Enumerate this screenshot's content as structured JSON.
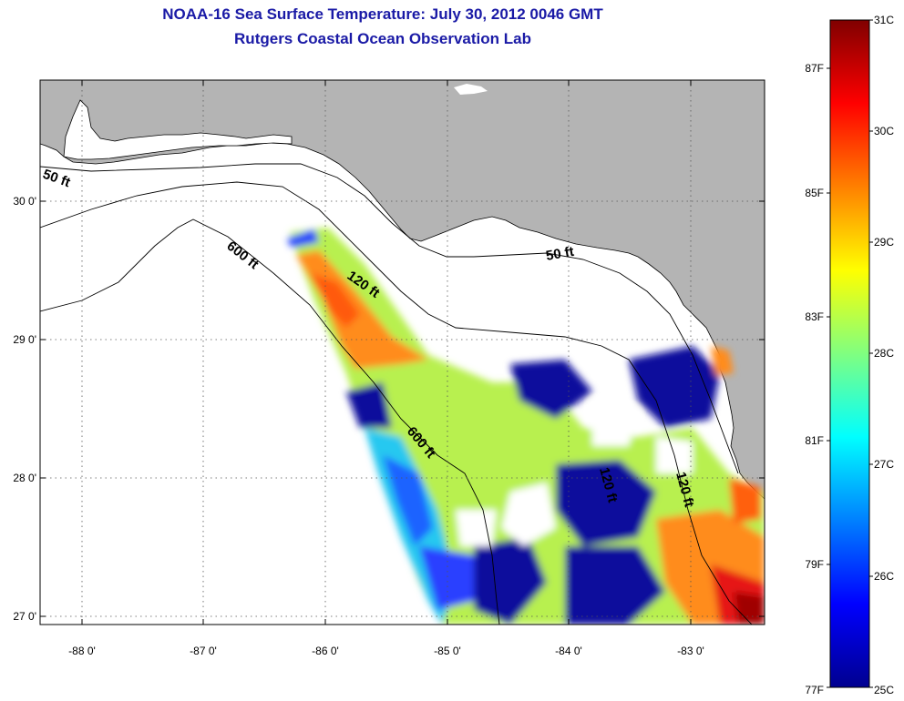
{
  "title": {
    "line1": "NOAA-16 Sea Surface Temperature:  July 30, 2012 0046 GMT",
    "line2": "Rutgers Coastal Ocean Observation Lab"
  },
  "map": {
    "lon_ticks": [
      "-88 0'",
      "-87 0'",
      "-86 0'",
      "-85 0'",
      "-84 0'",
      "-83 0'"
    ],
    "lat_ticks": [
      "30 0'",
      "29 0'",
      "28 0'",
      "27 0'"
    ],
    "contour_labels": [
      "50 ft",
      "600 ft",
      "120 ft",
      "600 ft",
      "50 ft",
      "120 ft",
      "120 ft"
    ],
    "colors": {
      "land": "#b4b4b4",
      "ocean": "#ffffff",
      "title": "#1a1aa6"
    }
  },
  "colorbar": {
    "celsius_labels": [
      "31C",
      "30C",
      "29C",
      "28C",
      "27C",
      "26C",
      "25C"
    ],
    "fahrenheit_labels": [
      "87F",
      "85F",
      "83F",
      "81F",
      "79F",
      "77F"
    ],
    "range_c": [
      25,
      31
    ],
    "stops": [
      "#00008f",
      "#0000ff",
      "#0080ff",
      "#00ffff",
      "#80ff80",
      "#ffff00",
      "#ff8000",
      "#ff0000",
      "#800000"
    ]
  }
}
